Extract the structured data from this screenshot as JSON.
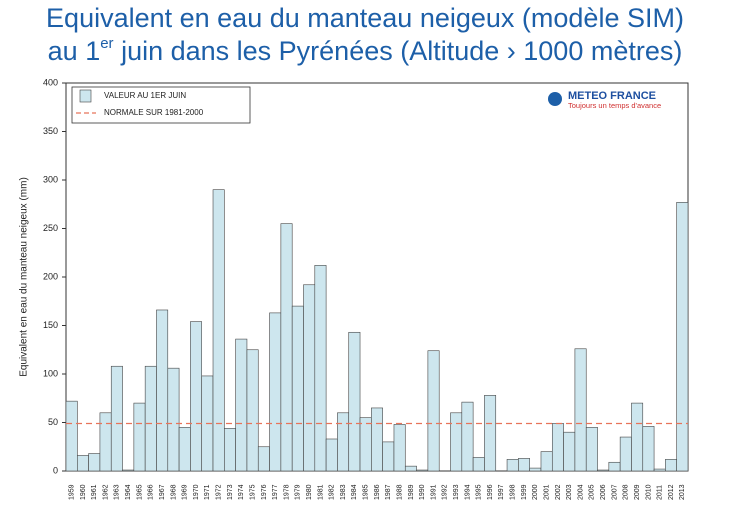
{
  "chart_data": {
    "type": "bar",
    "title": [
      "Equivalent en eau du manteau neigeux (modèle SIM)",
      "au 1",
      "er",
      " juin dans les Pyrénées (Altitude › 1000 mètres)"
    ],
    "y_label": "Equivalent en eau du manteau neigeux (mm)",
    "logo": {
      "name": "METEO FRANCE",
      "tagline": "Toujours un temps d'avance"
    },
    "categories": [
      "1959",
      "1960",
      "1961",
      "1962",
      "1963",
      "1964",
      "1965",
      "1966",
      "1967",
      "1968",
      "1969",
      "1970",
      "1971",
      "1972",
      "1973",
      "1974",
      "1975",
      "1976",
      "1977",
      "1978",
      "1979",
      "1980",
      "1981",
      "1982",
      "1983",
      "1984",
      "1985",
      "1986",
      "1987",
      "1988",
      "1989",
      "1990",
      "1991",
      "1992",
      "1993",
      "1994",
      "1995",
      "1996",
      "1997",
      "1998",
      "1999",
      "2000",
      "2001",
      "2002",
      "2003",
      "2004",
      "2005",
      "2006",
      "2007",
      "2008",
      "2009",
      "2010",
      "2011",
      "2012",
      "2013"
    ],
    "series": [
      {
        "name": "VALEUR AU 1ER JUIN",
        "color": "#cde6ee",
        "values": [
          72,
          16,
          18,
          60,
          108,
          1,
          70,
          108,
          166,
          106,
          45,
          154,
          98,
          290,
          44,
          136,
          125,
          25,
          163,
          255,
          170,
          192,
          212,
          33,
          60,
          143,
          55,
          65,
          30,
          48,
          5,
          1,
          124,
          0,
          60,
          71,
          14,
          78,
          0,
          12,
          13,
          3,
          20,
          49,
          40,
          126,
          45,
          1,
          9,
          35,
          70,
          46,
          2,
          12,
          277
        ]
      }
    ],
    "normal": {
      "name": "NORMALE SUR 1981-2000",
      "color": "#e8735a",
      "value": 49
    },
    "ylim": [
      0,
      400
    ],
    "yticks": [
      0,
      50,
      100,
      150,
      200,
      250,
      300,
      350,
      400
    ]
  }
}
